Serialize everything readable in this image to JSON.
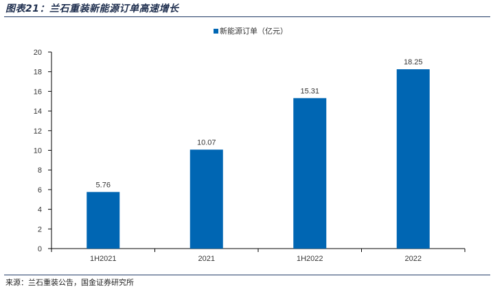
{
  "header": {
    "title": "图表21：兰石重装新能源订单高速增长"
  },
  "footer": {
    "source": "来源：兰石重装公告，国金证券研究所"
  },
  "colors": {
    "bar": "#0066b3",
    "rule": "#1f3864",
    "axis": "#000000"
  },
  "chart_data": {
    "type": "bar",
    "categories": [
      "1H2021",
      "2021",
      "1H2022",
      "2022"
    ],
    "series": [
      {
        "name": "新能源订单（亿元）",
        "values": [
          5.76,
          10.07,
          15.31,
          18.25
        ]
      }
    ],
    "data_labels": [
      "5.76",
      "10.07",
      "15.31",
      "18.25"
    ],
    "ylim": [
      0,
      20
    ],
    "yticks": [
      0,
      2,
      4,
      6,
      8,
      10,
      12,
      14,
      16,
      18,
      20
    ],
    "grid": false,
    "legend_position": "top-center"
  }
}
